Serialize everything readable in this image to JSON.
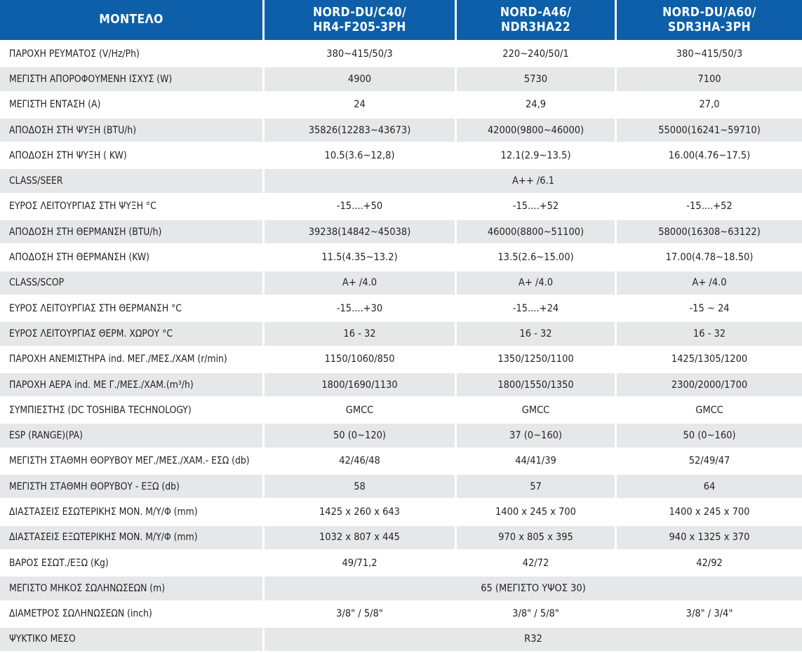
{
  "header": {
    "model_label": "ΜΟΝΤΕΛΟ",
    "models": [
      {
        "line1": "NORD-DU/C40/",
        "line2": "HR4-F205-3PH"
      },
      {
        "line1": "NORD-A46/",
        "line2": "NDR3HA22"
      },
      {
        "line1": "NORD-DU/A60/",
        "line2": "SDR3HA-3PH"
      }
    ]
  },
  "rows": [
    {
      "label": "ΠΑΡΟΧΗ ΡΕΥΜΑΤΟΣ  (V/Hz/Ph)",
      "values": [
        "380~415/50/3",
        "220~240/50/1",
        "380~415/50/3"
      ]
    },
    {
      "label": "ΜΕΓΙΣΤΗ ΑΠΟΡΟΦΟΥΜΕΝΗ ΙΣΧΥΣ  (W)",
      "values": [
        "4900",
        "5730",
        "7100"
      ]
    },
    {
      "label": "ΜΕΓΙΣΤΗ ΕΝΤΑΣΗ (A)",
      "values": [
        "24",
        "24,9",
        "27,0"
      ]
    },
    {
      "label": "ΑΠΟΔΟΣΗ ΣΤΗ ΨΥΞΗ  (BTU/h)",
      "values": [
        "35826(12283~43673)",
        "42000(9800~46000)",
        "55000(16241~59710)"
      ]
    },
    {
      "label": "ΑΠΟΔΟΣΗ ΣΤΗ ΨΥΞΗ  ( KW)",
      "values": [
        "10.5(3.6~12,8)",
        "12.1(2.9~13.5)",
        "16.00(4.76~17.5)"
      ]
    },
    {
      "label": "CLASS/SEER",
      "merged": "A++ /6.1"
    },
    {
      "label": "ΕΥΡΟΣ ΛΕΙΤΟΥΡΓΙΑΣ ΣΤΗ ΨΥΞΗ °C",
      "values": [
        "-15....+50",
        "-15....+52",
        "-15....+52"
      ]
    },
    {
      "label": "ΑΠΟΔΟΣΗ ΣΤΗ ΘΕΡΜΑΝΣΗ (BTU/h)",
      "values": [
        "39238(14842~45038)",
        "46000(8800~51100)",
        "58000(16308~63122)"
      ]
    },
    {
      "label": " ΑΠΟΔΟΣΗ ΣΤΗ ΘΕΡΜΑΝΣΗ (KW)",
      "values": [
        "11.5(4.35~13.2)",
        "13.5(2.6~15.00)",
        "17.00(4.78~18.50)"
      ]
    },
    {
      "label": "CLASS/SCOP",
      "values": [
        "A+ /4.0",
        "A+ /4.0",
        "A+ /4.0"
      ]
    },
    {
      "label": "ΕΥΡΟΣ ΛΕΙΤΟΥΡΓΙΑΣ ΣΤΗ ΘΕΡΜΑΝΣΗ  °C",
      "values": [
        "-15....+30",
        "-15....+24",
        "-15 ~ 24"
      ]
    },
    {
      "label": "ΕΥΡΟΣ ΛΕΙΤΟΥΡΓΙΑΣ ΘΕΡΜ. ΧΩΡΟΥ  °C",
      "values": [
        "16 - 32",
        "16 - 32",
        "16 - 32"
      ]
    },
    {
      "label": "ΠΑΡΟΧΗ ΑΝΕΜΙΣΤΗΡΑ ind. ΜΕΓ./ΜΕΣ./ΧΑΜ (r/min)",
      "values": [
        "1150/1060/850",
        "1350/1250/1100",
        "1425/1305/1200"
      ]
    },
    {
      "label": "ΠΑΡΟΧΗ ΑΕΡΑ ind. ΜΕ  Γ./ΜΕΣ./ΧΑΜ.(m³/h)",
      "values": [
        "1800/1690/1130",
        "1800/1550/1350",
        "2300/2000/1700"
      ]
    },
    {
      "label": " ΣΥΜΠΙΕΣΤΗΣ  (DC TOSHIBA TECHNOLOGY)",
      "values": [
        "GMCC",
        "GMCC",
        "GMCC"
      ]
    },
    {
      "label": "ESP (RANGE)(PA)",
      "values": [
        "50 (0~120)",
        "37 (0~160)",
        "50 (0~160)"
      ]
    },
    {
      "label": "ΜΕΓΙΣΤΗ ΣΤΑΘΜΗ ΘΟΡΥΒΟΥ  ΜΕΓ./ΜΕΣ./ΧΑΜ.- ΕΣΩ (db)",
      "values": [
        "42/46/48",
        "44/41/39",
        "52/49/47"
      ]
    },
    {
      "label": "ΜΕΓΙΣΤΗ ΣΤΑΘΜΗ ΘΟΡΥΒΟΥ  - ΕΞΩ (db)",
      "values": [
        "58",
        "57",
        "64"
      ]
    },
    {
      "label": "ΔΙΑΣΤΑΣΕΙΣ ΕΣΩΤΕΡΙΚΗΣ ΜΟΝ.   Μ/Υ/Φ (mm)",
      "values": [
        "1425 x 260 x 643",
        "1400 x 245 x 700",
        "1400 x 245 x 700"
      ]
    },
    {
      "label": "ΔΙΑΣΤΑΣΕΙΣ ΕΞΩΤΕΡΙΚΗΣ ΜΟΝ.     Μ/Υ/Φ (mm)",
      "values": [
        "1032 x 807 x 445",
        "970 x 805 x 395",
        "940 x 1325 x 370"
      ]
    },
    {
      "label": "ΒΑΡΟΣ ΕΣΩΤ./ΕΞΩ  (Kg)",
      "values": [
        "49/71,2",
        "42/72",
        "42/92"
      ]
    },
    {
      "label": "ΜΕΓΙΣΤΟ ΜΗΚΟΣ ΣΩΛΗΝΩΣΕΩΝ  (m)",
      "merged": "65 (ΜΕΓΙΣΤΟ ΥΨΟΣ 30)"
    },
    {
      "label": "ΔΙΑΜΕΤΡΟΣ ΣΩΛΗΝΩΣΕΩΝ   (inch)",
      "values": [
        "3/8\"  /  5/8\"",
        "3/8\"  /  5/8\"",
        "3/8\"  /  3/4\""
      ]
    },
    {
      "label": " ΨΥΚΤΙΚΟ ΜΕΣΟ",
      "merged": "R32"
    }
  ]
}
